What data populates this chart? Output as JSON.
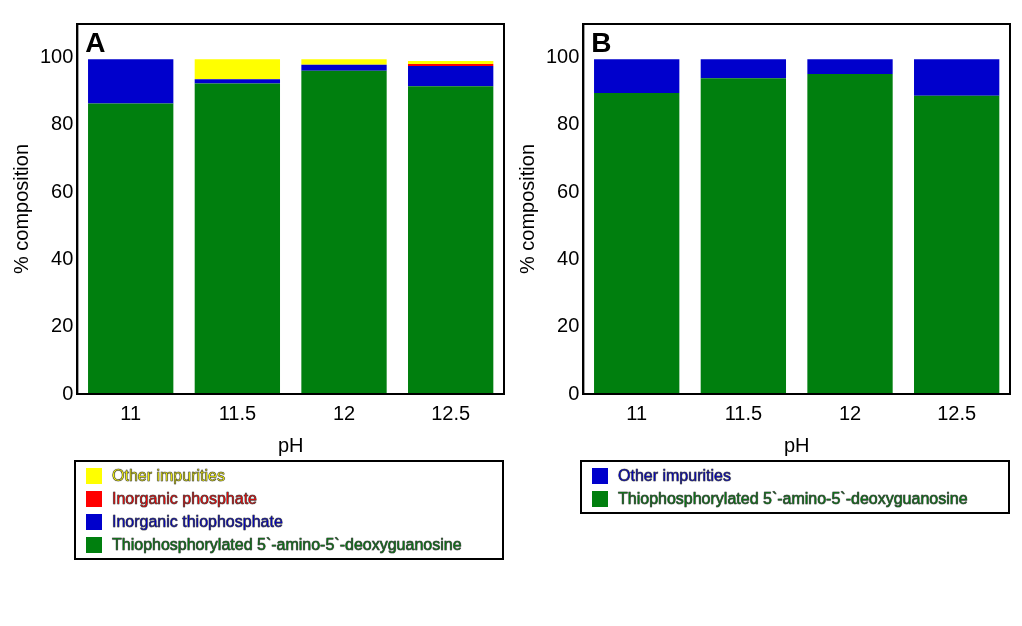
{
  "chart_data": [
    {
      "type": "bar",
      "title": "A",
      "xlabel": "pH",
      "ylabel": "% composition",
      "categories": [
        "11",
        "11.5",
        "12",
        "12.5"
      ],
      "stacked": true,
      "ylim": [
        0,
        110
      ],
      "yticks": [
        0,
        20,
        40,
        60,
        80,
        100
      ],
      "grid": false,
      "legend": "bottom",
      "series": [
        {
          "name": "Thiophosphorylated 5`-amino-5`-deoxyguanosine",
          "color": "#007f0e",
          "values": [
            86.4,
            92.3,
            96.1,
            91.5
          ]
        },
        {
          "name": "Inorganic thiophosphate",
          "color": "#0000cc",
          "values": [
            13.1,
            1.3,
            1.8,
            6.0
          ]
        },
        {
          "name": "Inorganic phosphate",
          "color": "#ff0000",
          "values": [
            null,
            null,
            null,
            0.6
          ]
        },
        {
          "name": "Other impurities",
          "color": "#ffff00",
          "values": [
            null,
            5.9,
            1.6,
            0.9
          ]
        }
      ]
    },
    {
      "type": "bar",
      "title": "B",
      "xlabel": "pH",
      "ylabel": "% composition",
      "categories": [
        "11",
        "11.5",
        "12",
        "12.5"
      ],
      "stacked": true,
      "ylim": [
        0,
        110
      ],
      "yticks": [
        0,
        20,
        40,
        60,
        80,
        100
      ],
      "grid": false,
      "legend": "bottom",
      "series": [
        {
          "name": "Thiophosphorylated 5`-amino-5`-deoxyguanosine",
          "color": "#007f0e",
          "values": [
            89.5,
            93.9,
            95.1,
            88.7
          ]
        },
        {
          "name": "Other impurities",
          "color": "#0000cc",
          "values": [
            10.0,
            5.6,
            4.4,
            10.8
          ]
        }
      ]
    }
  ]
}
